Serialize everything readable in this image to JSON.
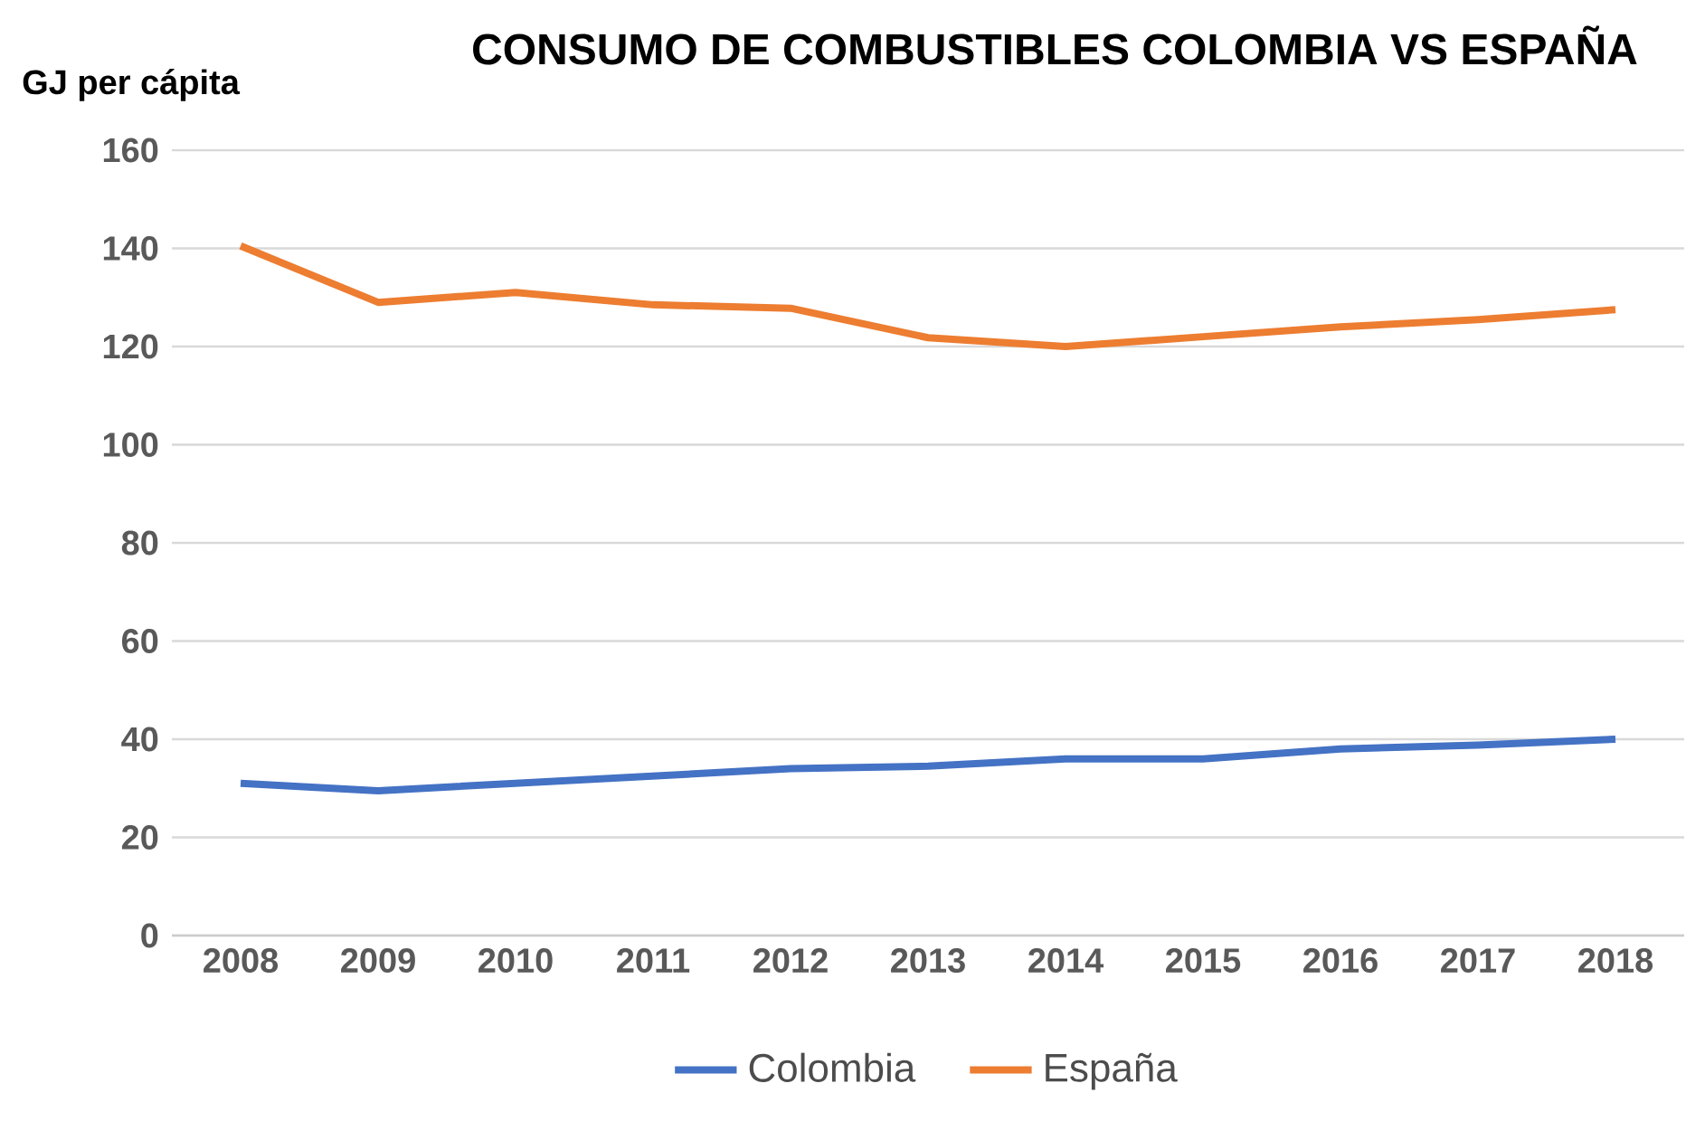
{
  "chart_data": {
    "type": "line",
    "title": "CONSUMO DE COMBUSTIBLES COLOMBIA VS ESPAÑA",
    "ylabel": "GJ per cápita",
    "categories": [
      "2008",
      "2009",
      "2010",
      "2011",
      "2012",
      "2013",
      "2014",
      "2015",
      "2016",
      "2017",
      "2018"
    ],
    "series": [
      {
        "name": "Colombia",
        "color": "#4472c4",
        "values": [
          31,
          29.5,
          31,
          32.5,
          34,
          34.5,
          36,
          36,
          38,
          38.8,
          40
        ]
      },
      {
        "name": "España",
        "color": "#ed7d31",
        "values": [
          140.5,
          129,
          131,
          128.5,
          127.8,
          121.8,
          120,
          122,
          124,
          125.5,
          127.5
        ]
      }
    ],
    "ylim": [
      0,
      160
    ],
    "yticks": [
      0,
      20,
      40,
      60,
      80,
      100,
      120,
      140,
      160
    ],
    "grid": "y",
    "legend": "bottom"
  }
}
